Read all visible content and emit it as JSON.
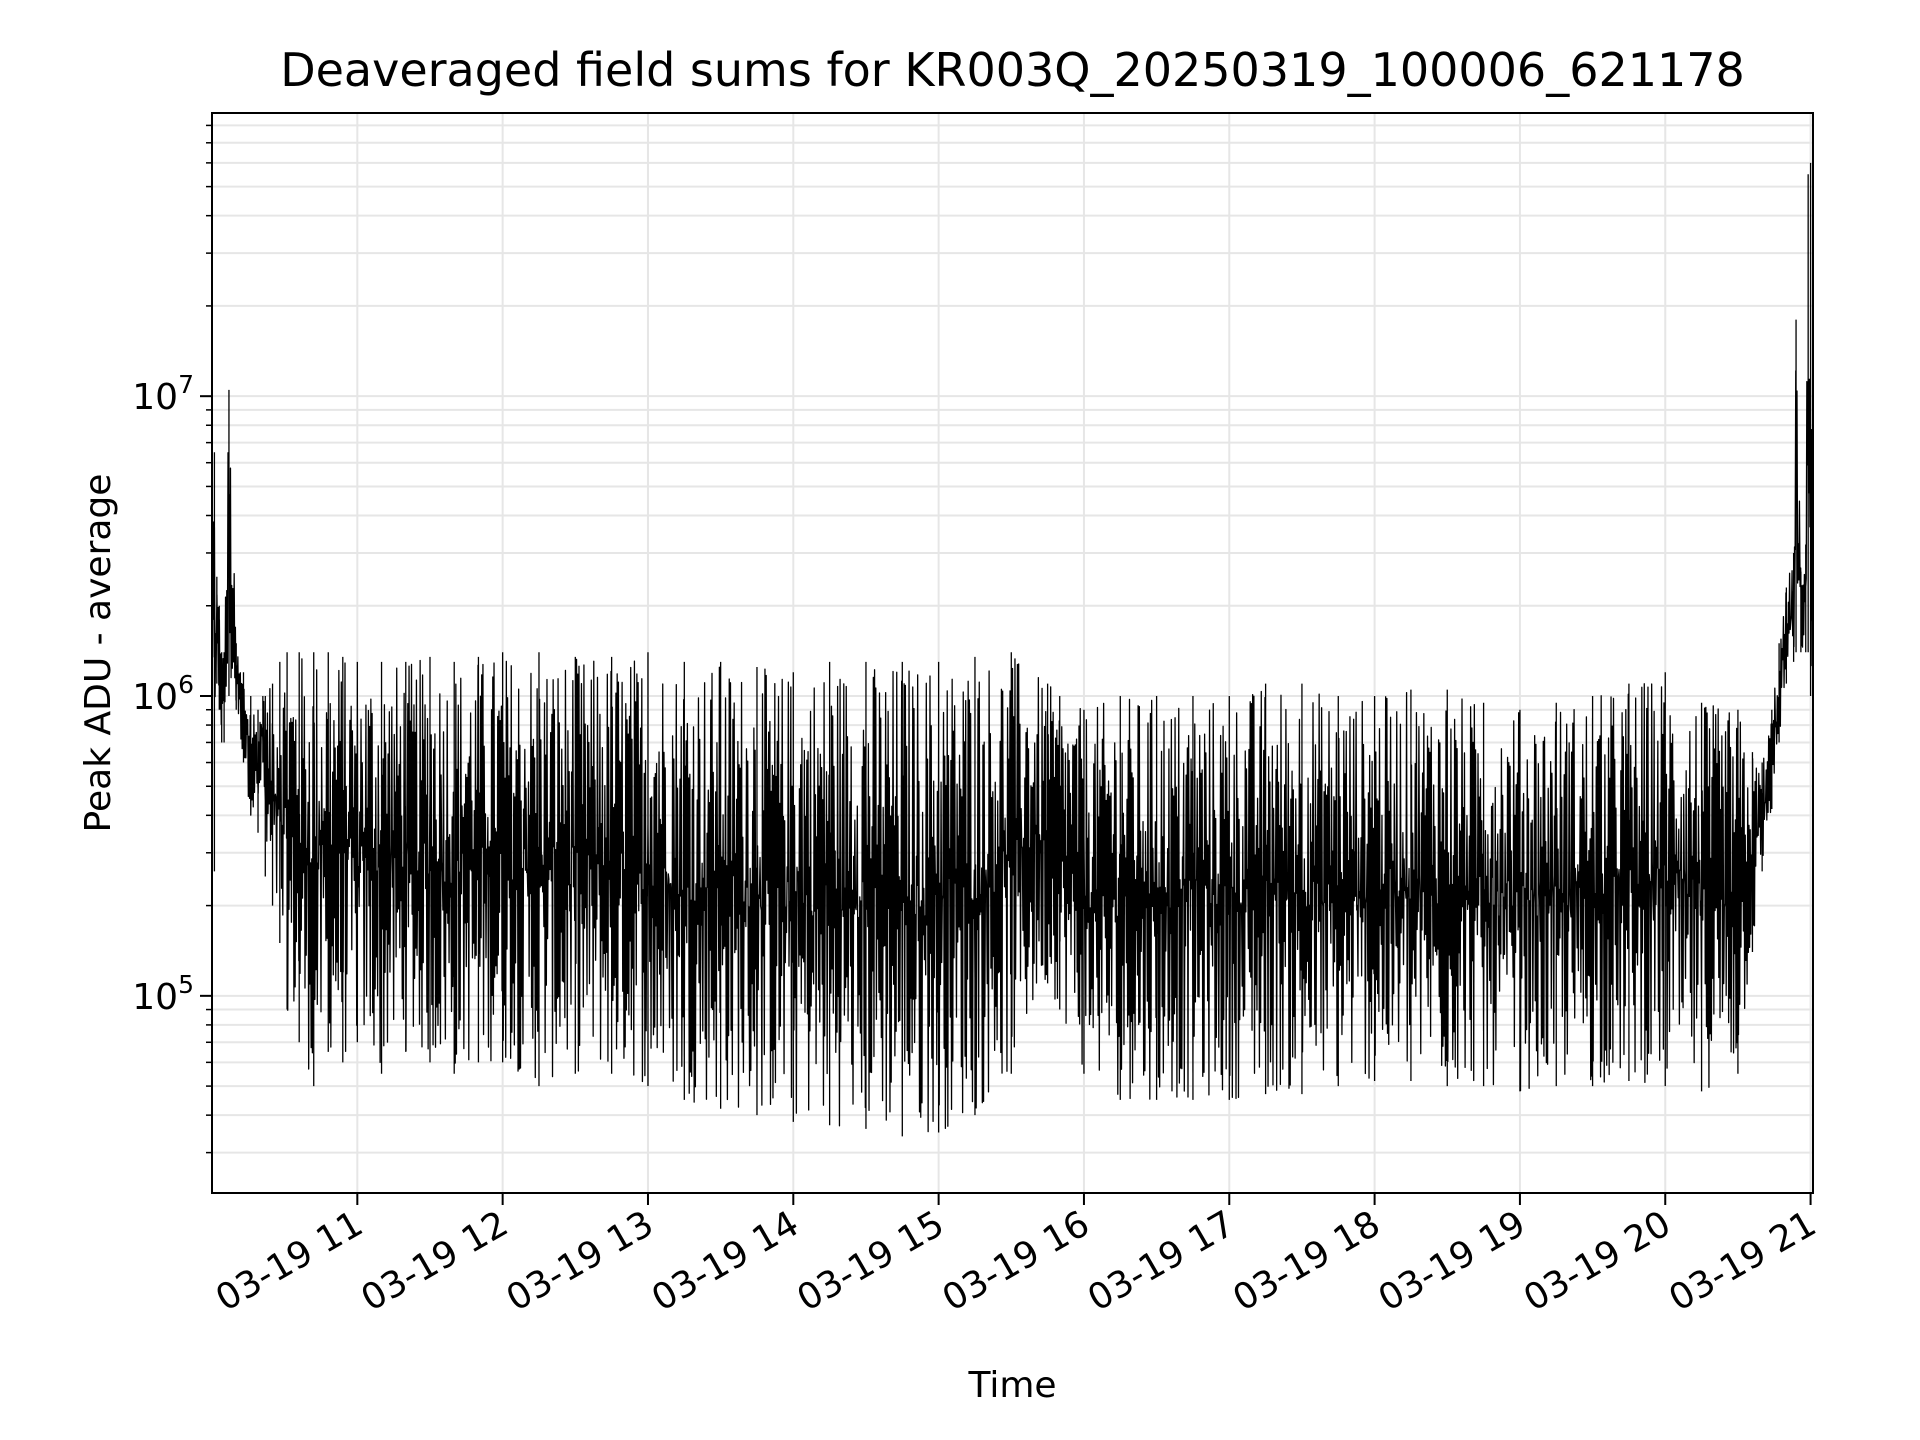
{
  "chart_data": {
    "type": "line",
    "title": "Deaveraged field sums for KR003Q_20250319_100006_621178",
    "xlabel": "Time",
    "ylabel": "Peak ADU - average",
    "yscale": "log",
    "grid": true,
    "line_color": "#000000",
    "grid_color": "#e6e6e6",
    "xlim": [
      "2025-03-19 10:00",
      "2025-03-19 21:01"
    ],
    "ylim": [
      22000,
      88000000
    ],
    "x_ticks": [
      {
        "value": "2025-03-19 11:00",
        "label": "03-19 11"
      },
      {
        "value": "2025-03-19 12:00",
        "label": "03-19 12"
      },
      {
        "value": "2025-03-19 13:00",
        "label": "03-19 13"
      },
      {
        "value": "2025-03-19 14:00",
        "label": "03-19 14"
      },
      {
        "value": "2025-03-19 15:00",
        "label": "03-19 15"
      },
      {
        "value": "2025-03-19 16:00",
        "label": "03-19 16"
      },
      {
        "value": "2025-03-19 17:00",
        "label": "03-19 17"
      },
      {
        "value": "2025-03-19 18:00",
        "label": "03-19 18"
      },
      {
        "value": "2025-03-19 19:00",
        "label": "03-19 19"
      },
      {
        "value": "2025-03-19 20:00",
        "label": "03-19 20"
      },
      {
        "value": "2025-03-19 21:00",
        "label": "03-19 21"
      }
    ],
    "y_ticks": [
      {
        "value": 100000,
        "base": "10",
        "exp": "5"
      },
      {
        "value": 1000000,
        "base": "10",
        "exp": "6"
      },
      {
        "value": 10000000,
        "base": "10",
        "exp": "7"
      }
    ],
    "series": [
      {
        "name": "",
        "x": [
          "2025-03-19 10:00",
          "2025-03-19 10:01",
          "2025-03-19 10:02",
          "2025-03-19 10:03",
          "2025-03-19 10:04",
          "2025-03-19 10:05",
          "2025-03-19 10:07",
          "2025-03-19 10:10",
          "2025-03-19 10:13",
          "2025-03-19 10:16",
          "2025-03-19 10:19",
          "2025-03-19 10:21",
          "2025-03-19 10:22",
          "2025-03-19 10:25",
          "2025-03-19 10:28",
          "2025-03-19 10:31",
          "2025-03-19 10:36",
          "2025-03-19 10:42",
          "2025-03-19 10:48",
          "2025-03-19 10:54",
          "2025-03-19 11:00",
          "2025-03-19 11:10",
          "2025-03-19 11:20",
          "2025-03-19 11:30",
          "2025-03-19 11:40",
          "2025-03-19 11:50",
          "2025-03-19 12:00",
          "2025-03-19 12:15",
          "2025-03-19 12:30",
          "2025-03-19 12:45",
          "2025-03-19 13:00",
          "2025-03-19 13:15",
          "2025-03-19 13:30",
          "2025-03-19 13:45",
          "2025-03-19 14:00",
          "2025-03-19 14:15",
          "2025-03-19 14:30",
          "2025-03-19 14:45",
          "2025-03-19 15:00",
          "2025-03-19 15:15",
          "2025-03-19 15:30",
          "2025-03-19 15:45",
          "2025-03-19 15:50",
          "2025-03-19 16:00",
          "2025-03-19 16:15",
          "2025-03-19 16:30",
          "2025-03-19 16:45",
          "2025-03-19 17:00",
          "2025-03-19 17:15",
          "2025-03-19 17:30",
          "2025-03-19 17:45",
          "2025-03-19 18:00",
          "2025-03-19 18:15",
          "2025-03-19 18:30",
          "2025-03-19 18:45",
          "2025-03-19 19:00",
          "2025-03-19 19:15",
          "2025-03-19 19:30",
          "2025-03-19 19:45",
          "2025-03-19 20:00",
          "2025-03-19 20:15",
          "2025-03-19 20:30",
          "2025-03-19 20:36",
          "2025-03-19 20:40",
          "2025-03-19 20:44",
          "2025-03-19 20:47",
          "2025-03-19 20:50",
          "2025-03-19 20:53",
          "2025-03-19 20:54",
          "2025-03-19 20:56",
          "2025-03-19 20:58",
          "2025-03-19 20:59",
          "2025-03-19 21:00",
          "2025-03-19 21:01"
        ],
        "y_low": [
          1600000,
          260000,
          1100000,
          900000,
          700000,
          700000,
          1000000,
          900000,
          600000,
          400000,
          350000,
          600000,
          250000,
          200000,
          150000,
          90000,
          70000,
          50000,
          65000,
          60000,
          70000,
          55000,
          65000,
          60000,
          55000,
          60000,
          60000,
          50000,
          55000,
          55000,
          50000,
          45000,
          42000,
          40000,
          38000,
          37000,
          36000,
          34000,
          35000,
          40000,
          55000,
          110000,
          90000,
          55000,
          45000,
          45000,
          45000,
          45000,
          47000,
          47000,
          50000,
          52000,
          52000,
          50000,
          50000,
          48000,
          50000,
          50000,
          52000,
          50000,
          48000,
          55000,
          140000,
          260000,
          420000,
          700000,
          1100000,
          1300000,
          1400000,
          1400000,
          1400000,
          1400000,
          1000000,
          1000000
        ],
        "y_high": [
          5500000,
          6500000,
          2500000,
          2000000,
          1400000,
          1400000,
          10500000,
          1500000,
          1200000,
          1000000,
          900000,
          1000000,
          1000000,
          1100000,
          1300000,
          1400000,
          1400000,
          1400000,
          1400000,
          1350000,
          1300000,
          1300000,
          1300000,
          1350000,
          1300000,
          1350000,
          1400000,
          1400000,
          1350000,
          1350000,
          1400000,
          1300000,
          1300000,
          1250000,
          1200000,
          1300000,
          1300000,
          1300000,
          1300000,
          1350000,
          1400000,
          1100000,
          1000000,
          900000,
          1000000,
          1000000,
          1000000,
          1000000,
          1100000,
          1100000,
          1000000,
          1000000,
          1050000,
          1050000,
          950000,
          900000,
          950000,
          1000000,
          1100000,
          1200000,
          950000,
          900000,
          650000,
          600000,
          900000,
          1500000,
          2300000,
          3000000,
          18000000,
          2600000,
          3200000,
          55000000,
          60000000,
          2200000
        ]
      }
    ]
  }
}
